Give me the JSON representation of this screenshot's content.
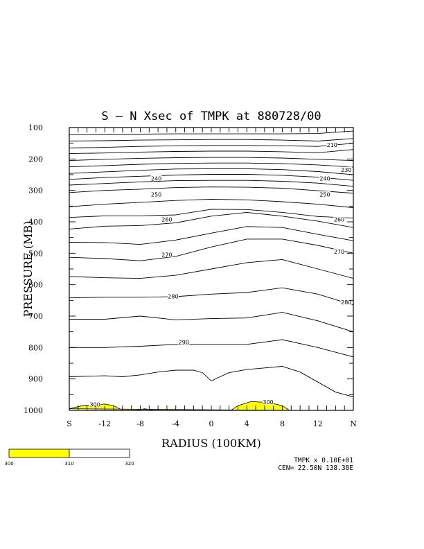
{
  "chart_data": {
    "type": "contour",
    "title": "S – N Xsec of TMPK at 880728/00",
    "xlabel": "RADIUS (100KM)",
    "ylabel": "PRESSURE (MB)",
    "x_ticks": [
      {
        "v": -16,
        "label": "S"
      },
      {
        "v": -12,
        "label": "-12"
      },
      {
        "v": -8,
        "label": "-8"
      },
      {
        "v": -4,
        "label": "-4"
      },
      {
        "v": 0,
        "label": "0"
      },
      {
        "v": 4,
        "label": "4"
      },
      {
        "v": 8,
        "label": "8"
      },
      {
        "v": 12,
        "label": "12"
      },
      {
        "v": 16,
        "label": "N"
      }
    ],
    "y_ticks": [
      100,
      200,
      300,
      400,
      500,
      600,
      700,
      800,
      900,
      1000
    ],
    "xlim": [
      -16,
      16
    ],
    "ylim": [
      100,
      1000
    ],
    "y_inverted": true,
    "grid": false,
    "contour_labels": [
      {
        "text": "210",
        "x": 13.6,
        "y": 155
      },
      {
        "text": "230",
        "x": 15.2,
        "y": 235
      },
      {
        "text": "240",
        "x": -6.2,
        "y": 262
      },
      {
        "text": "240",
        "x": 12.8,
        "y": 262
      },
      {
        "text": "250",
        "x": -6.2,
        "y": 313
      },
      {
        "text": "250",
        "x": 12.8,
        "y": 313
      },
      {
        "text": "260",
        "x": -5.0,
        "y": 392
      },
      {
        "text": "260",
        "x": 14.4,
        "y": 392
      },
      {
        "text": "270",
        "x": -5.0,
        "y": 505
      },
      {
        "text": "270",
        "x": 14.4,
        "y": 495
      },
      {
        "text": "280",
        "x": -4.3,
        "y": 637
      },
      {
        "text": "280",
        "x": 15.2,
        "y": 656
      },
      {
        "text": "290",
        "x": -3.1,
        "y": 783
      },
      {
        "text": "300",
        "x": -13.1,
        "y": 981
      },
      {
        "text": "300",
        "x": 6.4,
        "y": 973
      }
    ],
    "shaded_regions": [
      {
        "label": ">300",
        "points": [
          [
            -16,
            995
          ],
          [
            -14.5,
            985
          ],
          [
            -12,
            980
          ],
          [
            -11,
            985
          ],
          [
            -10,
            1000
          ],
          [
            -8.5,
            1000
          ],
          [
            -7.5,
            995
          ],
          [
            -6.5,
            1000
          ],
          [
            2.2,
            1000
          ],
          [
            3,
            985
          ],
          [
            4.5,
            972
          ],
          [
            6.5,
            975
          ],
          [
            8,
            985
          ],
          [
            8.8,
            1000
          ]
        ]
      }
    ],
    "contour_lines": [
      {
        "x": [
          -16,
          -12,
          -8,
          -4,
          0,
          4,
          8,
          12,
          16
        ],
        "y": [
          123,
          122,
          121,
          120,
          120,
          120,
          120,
          119,
          111
        ]
      },
      {
        "x": [
          -16,
          -12,
          -8,
          -4,
          0,
          4,
          8,
          12,
          16
        ],
        "y": [
          143,
          142,
          140,
          139,
          138,
          138,
          140,
          143,
          135
        ]
      },
      {
        "x": [
          -16,
          -12,
          -8,
          -4,
          0,
          4,
          8,
          12,
          16
        ],
        "y": [
          165,
          163,
          160,
          158,
          157,
          157,
          158,
          160,
          150
        ]
      },
      {
        "x": [
          -16,
          -12,
          -8,
          -4,
          0,
          4,
          8,
          12,
          16
        ],
        "y": [
          183,
          181,
          178,
          176,
          175,
          175,
          177,
          180,
          170
        ]
      },
      {
        "x": [
          -16,
          -12,
          -8,
          -4,
          0,
          4,
          8,
          12,
          16
        ],
        "y": [
          205,
          201,
          198,
          196,
          195,
          195,
          197,
          201,
          205
        ]
      },
      {
        "x": [
          -16,
          -12,
          -8,
          -4,
          0,
          4,
          8,
          12,
          16
        ],
        "y": [
          225,
          221,
          217,
          214,
          213,
          213,
          215,
          219,
          226
        ]
      },
      {
        "x": [
          -16,
          -12,
          -8,
          -4,
          0,
          4,
          8,
          12,
          16
        ],
        "y": [
          246,
          241,
          236,
          232,
          231,
          231,
          234,
          240,
          250
        ]
      },
      {
        "x": [
          -16,
          -12,
          -8,
          -4,
          0,
          4,
          8,
          12,
          16
        ],
        "y": [
          265,
          259,
          255,
          251,
          249,
          249,
          252,
          258,
          268
        ]
      },
      {
        "x": [
          -16,
          -12,
          -8,
          -4,
          0,
          4,
          8,
          12,
          16
        ],
        "y": [
          283,
          278,
          273,
          269,
          268,
          268,
          271,
          277,
          287
        ]
      },
      {
        "x": [
          -16,
          -12,
          -8,
          -4,
          0,
          4,
          8,
          12,
          16
        ],
        "y": [
          307,
          300,
          296,
          291,
          289,
          290,
          293,
          301,
          309
        ]
      },
      {
        "x": [
          -16,
          -12,
          -8,
          -4,
          0,
          4,
          8,
          12,
          16
        ],
        "y": [
          352,
          344,
          338,
          332,
          328,
          330,
          336,
          344,
          355
        ]
      },
      {
        "x": [
          -16,
          -12,
          -8,
          -4,
          0,
          4,
          8,
          12,
          16
        ],
        "y": [
          386,
          381,
          381,
          378,
          360,
          361,
          370,
          383,
          388
        ]
      },
      {
        "x": [
          -16,
          -12,
          -8,
          -4,
          0,
          4,
          8,
          12,
          16
        ],
        "y": [
          423,
          414,
          412,
          403,
          382,
          370,
          382,
          398,
          418
        ]
      },
      {
        "x": [
          -16,
          -12,
          -8,
          -4,
          0,
          4,
          8,
          12,
          16
        ],
        "y": [
          465,
          466,
          472,
          458,
          436,
          415,
          418,
          440,
          460
        ]
      },
      {
        "x": [
          -16,
          -12,
          -8,
          -4,
          0,
          4,
          8,
          12,
          16
        ],
        "y": [
          513,
          517,
          524,
          510,
          480,
          455,
          455,
          475,
          500
        ]
      },
      {
        "x": [
          -16,
          -12,
          -8,
          -4,
          0,
          4,
          8,
          12,
          16
        ],
        "y": [
          574,
          578,
          580,
          570,
          550,
          530,
          520,
          550,
          580
        ]
      },
      {
        "x": [
          -16,
          -12,
          -8,
          -4,
          0,
          4,
          8,
          12,
          16
        ],
        "y": [
          642,
          640,
          640,
          638,
          630,
          625,
          610,
          630,
          665
        ]
      },
      {
        "x": [
          -16,
          -12,
          -8,
          -4,
          0,
          4,
          8,
          12,
          16
        ],
        "y": [
          710,
          710,
          700,
          712,
          708,
          706,
          688,
          715,
          750
        ]
      },
      {
        "x": [
          -16,
          -12,
          -8,
          -4,
          0,
          4,
          8,
          12,
          16
        ],
        "y": [
          800,
          800,
          796,
          790,
          790,
          790,
          775,
          800,
          830
        ]
      },
      {
        "x": [
          -16,
          -12,
          -10,
          -8,
          -6,
          -4,
          -2,
          -1,
          0,
          2,
          4,
          6,
          8,
          10,
          12,
          14,
          16
        ],
        "y": [
          893,
          890,
          893,
          887,
          878,
          872,
          872,
          880,
          906,
          880,
          870,
          865,
          860,
          878,
          910,
          942,
          957
        ]
      }
    ],
    "colorbar": {
      "labels": [
        "300",
        "310",
        "320"
      ],
      "colors": [
        "#ffff00",
        "#ffffff"
      ]
    },
    "annotations": [
      "TMPK x  0.10E+01",
      "CEN= 22.50N  138.38E"
    ]
  }
}
